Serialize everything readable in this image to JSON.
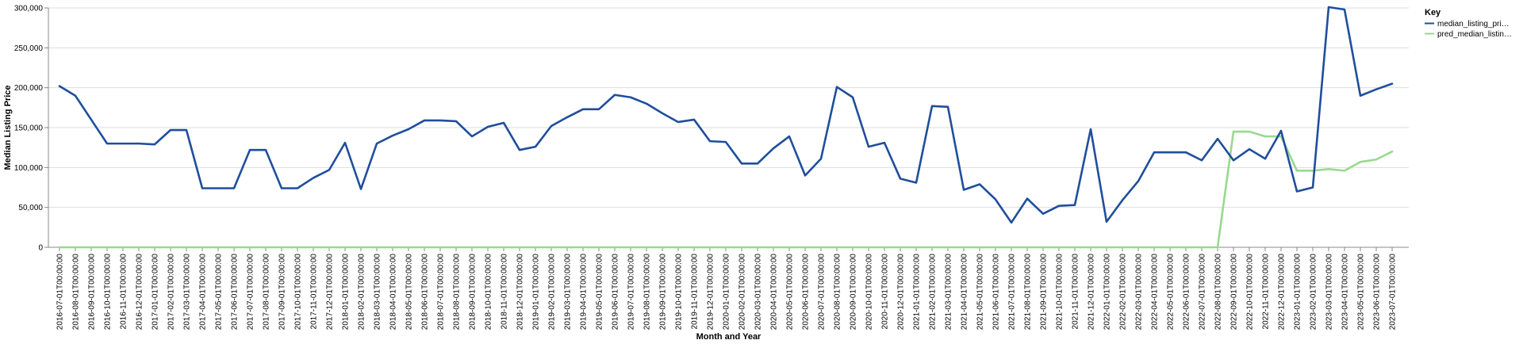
{
  "chart_data": {
    "type": "line",
    "xlabel": "Month and Year",
    "ylabel": "Median Listing Price",
    "ylim": [
      0,
      300000
    ],
    "y_ticks": [
      0,
      50000,
      100000,
      150000,
      200000,
      250000,
      300000
    ],
    "y_tick_labels": [
      "0",
      "50,000",
      "100,000",
      "150,000",
      "200,000",
      "250,000",
      "300,000"
    ],
    "grid": true,
    "legend_position": "right",
    "legend_title": "Key",
    "x": [
      "2016-07-01T00:00:00",
      "2016-08-01T00:00:00",
      "2016-09-01T00:00:00",
      "2016-10-01T00:00:00",
      "2016-11-01T00:00:00",
      "2016-12-01T00:00:00",
      "2017-01-01T00:00:00",
      "2017-02-01T00:00:00",
      "2017-03-01T00:00:00",
      "2017-04-01T00:00:00",
      "2017-05-01T00:00:00",
      "2017-06-01T00:00:00",
      "2017-07-01T00:00:00",
      "2017-08-01T00:00:00",
      "2017-09-01T00:00:00",
      "2017-10-01T00:00:00",
      "2017-11-01T00:00:00",
      "2017-12-01T00:00:00",
      "2018-01-01T00:00:00",
      "2018-02-01T00:00:00",
      "2018-03-01T00:00:00",
      "2018-04-01T00:00:00",
      "2018-05-01T00:00:00",
      "2018-06-01T00:00:00",
      "2018-07-01T00:00:00",
      "2018-08-01T00:00:00",
      "2018-09-01T00:00:00",
      "2018-10-01T00:00:00",
      "2018-11-01T00:00:00",
      "2018-12-01T00:00:00",
      "2019-01-01T00:00:00",
      "2019-02-01T00:00:00",
      "2019-03-01T00:00:00",
      "2019-04-01T00:00:00",
      "2019-05-01T00:00:00",
      "2019-06-01T00:00:00",
      "2019-07-01T00:00:00",
      "2019-08-01T00:00:00",
      "2019-09-01T00:00:00",
      "2019-10-01T00:00:00",
      "2019-11-01T00:00:00",
      "2019-12-01T00:00:00",
      "2020-01-01T00:00:00",
      "2020-02-01T00:00:00",
      "2020-03-01T00:00:00",
      "2020-04-01T00:00:00",
      "2020-05-01T00:00:00",
      "2020-06-01T00:00:00",
      "2020-07-01T00:00:00",
      "2020-08-01T00:00:00",
      "2020-09-01T00:00:00",
      "2020-10-01T00:00:00",
      "2020-11-01T00:00:00",
      "2020-12-01T00:00:00",
      "2021-01-01T00:00:00",
      "2021-02-01T00:00:00",
      "2021-03-01T00:00:00",
      "2021-04-01T00:00:00",
      "2021-05-01T00:00:00",
      "2021-06-01T00:00:00",
      "2021-07-01T00:00:00",
      "2021-08-01T00:00:00",
      "2021-09-01T00:00:00",
      "2021-10-01T00:00:00",
      "2021-11-01T00:00:00",
      "2021-12-01T00:00:00",
      "2022-01-01T00:00:00",
      "2022-02-01T00:00:00",
      "2022-03-01T00:00:00",
      "2022-04-01T00:00:00",
      "2022-05-01T00:00:00",
      "2022-06-01T00:00:00",
      "2022-07-01T00:00:00",
      "2022-08-01T00:00:00",
      "2022-09-01T00:00:00",
      "2022-10-01T00:00:00",
      "2022-11-01T00:00:00",
      "2022-12-01T00:00:00",
      "2023-01-01T00:00:00",
      "2023-02-01T00:00:00",
      "2023-03-01T00:00:00",
      "2023-04-01T00:00:00",
      "2023-05-01T00:00:00",
      "2023-06-01T00:00:00",
      "2023-07-01T00:00:00"
    ],
    "series": [
      {
        "name": "median_listing_pri…",
        "color": "#1f4e9c",
        "values": [
          202000,
          190000,
          160000,
          130000,
          130000,
          130000,
          129000,
          147000,
          147000,
          74000,
          74000,
          74000,
          122000,
          122000,
          74000,
          74000,
          87000,
          97000,
          131000,
          73000,
          130000,
          140000,
          148000,
          159000,
          159000,
          158000,
          139000,
          151000,
          156000,
          122000,
          126000,
          152000,
          163000,
          173000,
          173000,
          191000,
          188000,
          180000,
          168000,
          157000,
          160000,
          133000,
          132000,
          105000,
          105000,
          124000,
          139000,
          90000,
          111000,
          201000,
          188000,
          126000,
          131000,
          86000,
          81000,
          177000,
          176000,
          72000,
          79000,
          60000,
          31000,
          61000,
          42000,
          52000,
          53000,
          148000,
          32000,
          59000,
          83000,
          119000,
          119000,
          119000,
          109000,
          136000,
          109000,
          123000,
          111000,
          146000,
          70000,
          75000,
          301000,
          298000,
          190000,
          198000,
          205000
        ]
      },
      {
        "name": "pred_median_listin…",
        "color": "#98d98e",
        "values": [
          0,
          0,
          0,
          0,
          0,
          0,
          0,
          0,
          0,
          0,
          0,
          0,
          0,
          0,
          0,
          0,
          0,
          0,
          0,
          0,
          0,
          0,
          0,
          0,
          0,
          0,
          0,
          0,
          0,
          0,
          0,
          0,
          0,
          0,
          0,
          0,
          0,
          0,
          0,
          0,
          0,
          0,
          0,
          0,
          0,
          0,
          0,
          0,
          0,
          0,
          0,
          0,
          0,
          0,
          0,
          0,
          0,
          0,
          0,
          0,
          0,
          0,
          0,
          0,
          0,
          0,
          0,
          0,
          0,
          0,
          0,
          0,
          0,
          0,
          145000,
          145000,
          139000,
          139000,
          96000,
          96000,
          98000,
          96000,
          107000,
          110000,
          120000
        ]
      }
    ]
  }
}
